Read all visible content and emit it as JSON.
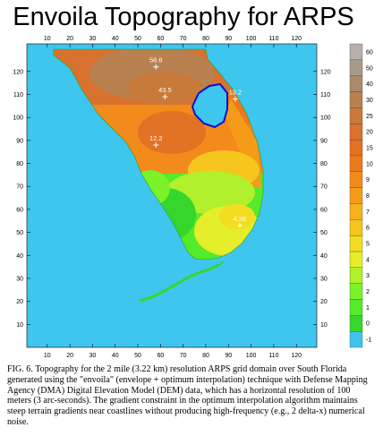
{
  "title": "Envoila Topography for ARPS",
  "caption": "FIG. 6.  Topography for the 2 mile (3.22 km) resolution ARPS grid domain over South Florida generated using the \"envoila\" (envelope + optimum interpolation) technique with Defense Mapping Agency (DMA) Digital Elevation Model (DEM) data, which has a horizontal resolution of 100 meters (3 arc-seconds). The gradient constraint in the optimum interpolation algorithm maintains steep terrain gradients near coastlines without producing high-frequency (e.g., 2 delta-x) numerical noise.",
  "axis": {
    "xticks": [
      "10",
      "20",
      "30",
      "40",
      "50",
      "60",
      "70",
      "80",
      "90",
      "100",
      "110",
      "120"
    ],
    "yticks": [
      "10",
      "20",
      "30",
      "40",
      "50",
      "60",
      "70",
      "80",
      "90",
      "100",
      "110",
      "120"
    ]
  },
  "colorbar": {
    "labels": [
      "-1",
      "0",
      "1",
      "2",
      "3",
      "4",
      "5",
      "6",
      "7",
      "8",
      "9",
      "10",
      "15",
      "20",
      "25",
      "30",
      "40",
      "50",
      "60"
    ],
    "colors": [
      "#40c4ee",
      "#37d62c",
      "#55ea2a",
      "#7cf22a",
      "#b0f02c",
      "#e4ee2a",
      "#f4dc22",
      "#f6c61e",
      "#f6b21a",
      "#f49c18",
      "#f28a1c",
      "#ea7a1e",
      "#e27224",
      "#d8722e",
      "#c87a3a",
      "#b98050",
      "#aa8a68",
      "#a89a8a",
      "#b8b0a8"
    ]
  },
  "points": [
    {
      "label": "56.6",
      "x": 58,
      "y": 122
    },
    {
      "label": "43.5",
      "x": 62,
      "y": 109
    },
    {
      "label": "13.2",
      "x": 93,
      "y": 108
    },
    {
      "label": "12.2",
      "x": 58,
      "y": 88
    },
    {
      "label": "4.36",
      "x": 95,
      "y": 53
    }
  ],
  "colors": {
    "water": "#3fc6ee",
    "lake_outline": "#1010d0"
  }
}
